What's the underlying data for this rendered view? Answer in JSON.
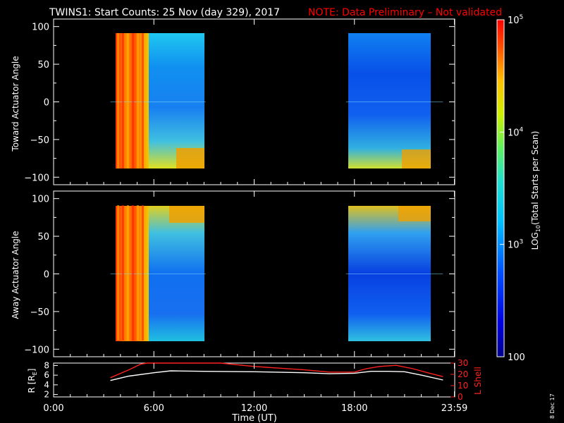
{
  "header": {
    "title": "TWINS1: Start Counts: 25 Nov (day 329), 2017",
    "note": "NOTE: Data Preliminary – Not validated",
    "note_color": "#ff0000"
  },
  "footer": {
    "datestamp": "8 Dec 17"
  },
  "chart_data": [
    {
      "type": "heatmap",
      "ylabel": "Toward Actuator Angle",
      "ylim": [
        -110,
        110
      ],
      "yticks": [
        "100",
        "50",
        "0",
        "−50",
        "−100"
      ],
      "xlim": [
        0,
        24
      ],
      "coverage_hours": [
        [
          3.4,
          9.1
        ],
        [
          17.5,
          23.3
        ]
      ],
      "angle_range": [
        -88,
        90
      ]
    },
    {
      "type": "heatmap",
      "ylabel": "Away Actuator Angle",
      "ylim": [
        -110,
        110
      ],
      "yticks": [
        "100",
        "50",
        "0",
        "−50",
        "−100"
      ],
      "xlim": [
        0,
        24
      ],
      "coverage_hours": [
        [
          3.4,
          9.1
        ],
        [
          17.5,
          23.3
        ]
      ],
      "angle_range": [
        -88,
        90
      ],
      "xticks": [
        "0:00",
        "6:00",
        "12:00",
        "18:00",
        "23:59"
      ],
      "xlabel": "Time (UT)"
    },
    {
      "type": "line",
      "ylabel_left": "R [R",
      "ylabel_left_sub": "E",
      "ylabel_left_close": "]",
      "yticks_left": [
        "8",
        "6",
        "4",
        "2"
      ],
      "ylim_left": [
        1.5,
        8.5
      ],
      "ylabel_right": "L Shell",
      "yticks_right": [
        "30",
        "20",
        "10",
        "0"
      ],
      "ylim_right": [
        0,
        30
      ],
      "series": [
        {
          "color": "#ffffff",
          "axis": "left",
          "points": [
            [
              3.4,
              4.9
            ],
            [
              4.5,
              5.8
            ],
            [
              6.0,
              6.5
            ],
            [
              7.0,
              6.9
            ],
            [
              9.0,
              6.8
            ],
            [
              12.0,
              6.7
            ],
            [
              15.0,
              6.5
            ],
            [
              16.5,
              6.3
            ],
            [
              18.0,
              6.4
            ],
            [
              19.0,
              6.8
            ],
            [
              20.0,
              6.8
            ],
            [
              21.0,
              6.7
            ],
            [
              22.0,
              6.0
            ],
            [
              23.3,
              5.0
            ]
          ]
        },
        {
          "color": "#ff2020",
          "axis": "right",
          "points": [
            [
              3.4,
              17
            ],
            [
              4.5,
              24
            ],
            [
              5.2,
              29
            ],
            [
              5.6,
              31
            ],
            [
              10.0,
              31
            ],
            [
              12.0,
              27
            ],
            [
              15.0,
              24
            ],
            [
              16.5,
              22
            ],
            [
              18.0,
              22
            ],
            [
              18.7,
              25
            ],
            [
              19.5,
              27
            ],
            [
              20.5,
              28
            ],
            [
              21.5,
              25
            ],
            [
              22.5,
              21
            ],
            [
              23.3,
              18
            ]
          ]
        }
      ]
    }
  ],
  "colorbar": {
    "ticks": [
      "10",
      "10",
      "10",
      "100"
    ],
    "tick_exponents": [
      "5",
      "4",
      "3",
      ""
    ],
    "label_prefix": "LOG",
    "label_sub": "10",
    "label_suffix": "(Total Starts per Scan)",
    "range_log10": [
      2,
      5
    ]
  }
}
